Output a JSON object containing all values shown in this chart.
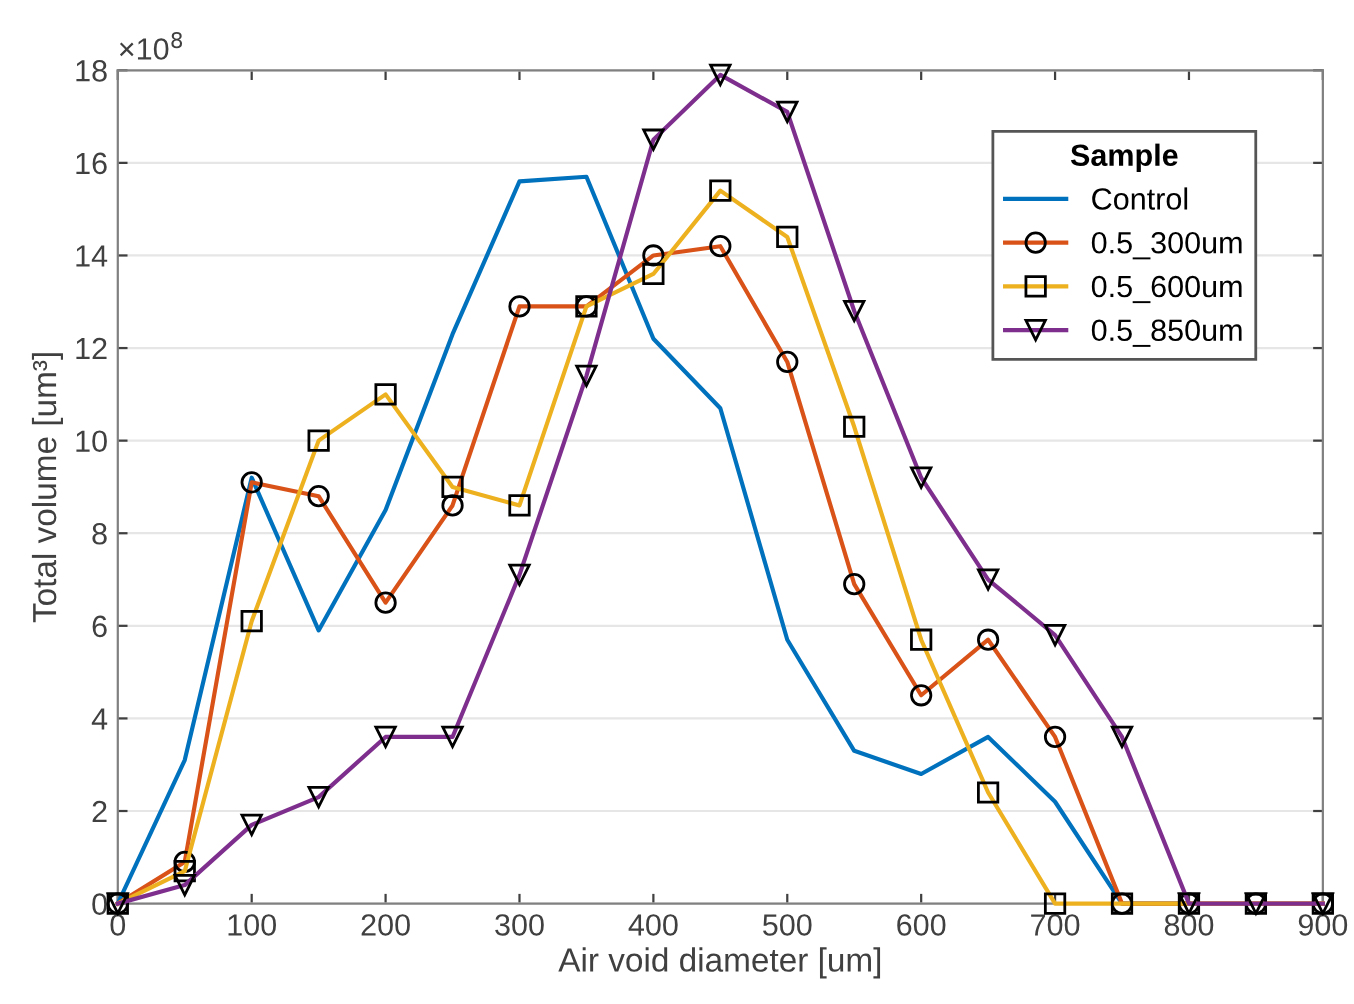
{
  "chart_data": {
    "type": "line",
    "xlabel": "Air void diameter [um]",
    "ylabel": "Total volume [um³]",
    "legend_title": "Sample",
    "annotations": [
      "×10$^{8}$"
    ],
    "x": [
      0,
      50,
      100,
      150,
      200,
      250,
      300,
      350,
      400,
      450,
      500,
      550,
      600,
      650,
      700,
      750,
      800,
      850,
      900
    ],
    "series": [
      {
        "name": "Control",
        "color": "#0072bd",
        "marker": "none",
        "values": [
          0,
          3.1,
          9.2,
          5.9,
          8.5,
          12.3,
          15.6,
          15.7,
          12.2,
          10.7,
          5.7,
          3.3,
          2.8,
          3.6,
          2.2,
          0,
          0,
          null,
          null
        ]
      },
      {
        "name": "0.5_300um",
        "color": "#d95319",
        "marker": "circle",
        "values": [
          0,
          0.9,
          9.1,
          8.8,
          6.5,
          8.6,
          12.9,
          12.9,
          14.0,
          14.2,
          11.7,
          6.9,
          4.5,
          5.7,
          3.6,
          0,
          0,
          0,
          0
        ]
      },
      {
        "name": "0.5_600um",
        "color": "#edb120",
        "marker": "square",
        "values": [
          0,
          0.7,
          6.1,
          10.0,
          11.0,
          9.0,
          8.6,
          12.9,
          13.6,
          15.4,
          14.4,
          10.3,
          5.7,
          2.4,
          0,
          0,
          0,
          0,
          0
        ]
      },
      {
        "name": "0.5_850um",
        "color": "#7e2f8e",
        "marker": "triangle",
        "values": [
          0,
          0.4,
          1.7,
          2.3,
          3.6,
          3.6,
          7.1,
          11.4,
          16.5,
          17.9,
          17.1,
          12.8,
          9.2,
          7.0,
          5.8,
          3.6,
          0,
          0,
          0
        ]
      }
    ],
    "xlim": [
      0,
      900
    ],
    "xticks": [
      0,
      100,
      200,
      300,
      400,
      500,
      600,
      700,
      800,
      900
    ],
    "ylim": [
      0,
      18
    ],
    "yticks": [
      0,
      2,
      4,
      6,
      8,
      10,
      12,
      14,
      16,
      18
    ],
    "grid": "y",
    "legend": "top right"
  }
}
